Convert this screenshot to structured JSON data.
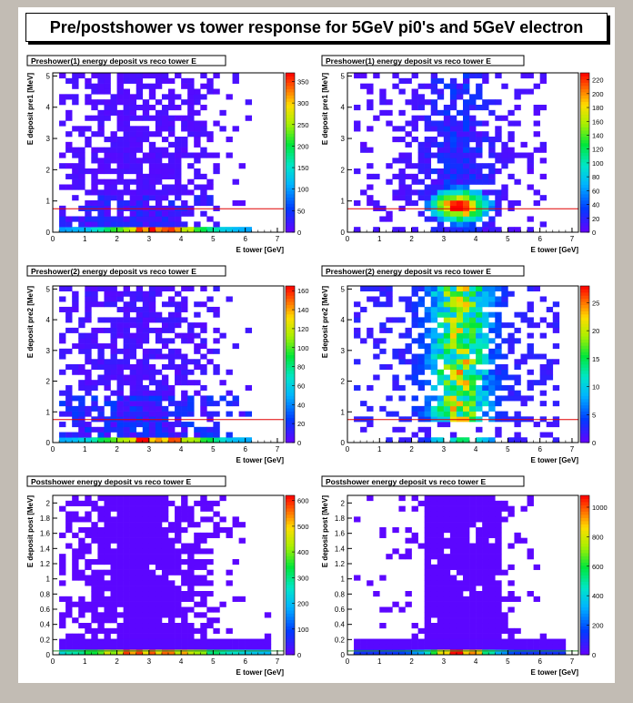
{
  "main_title": "Pre/postshower vs tower response for 5GeV pi0's and 5GeV electron",
  "chart_data": [
    {
      "type": "heatmap",
      "title": "Preshower(1) energy deposit vs reco tower E",
      "xlabel": "E tower [GeV]",
      "ylabel": "E deposit pre1 [MeV]",
      "xlim": [
        0,
        7.2
      ],
      "ylim": [
        0,
        5.1
      ],
      "xticks": [
        "0",
        "1",
        "2",
        "3",
        "4",
        "5",
        "6",
        "7"
      ],
      "yticks": [
        "0",
        "1",
        "2",
        "3",
        "4",
        "5"
      ],
      "zticks": [
        "0",
        "50",
        "100",
        "150",
        "200",
        "250",
        "300",
        "350"
      ],
      "zmax": 370,
      "cut_line_y": 0.75,
      "sample": "5GeV pi0",
      "description": "Broad diffuse distribution from x=0.2 to 5.5 GeV, strong band at y<0.15 peaking near x=3-4"
    },
    {
      "type": "heatmap",
      "title": "Preshower(1) energy deposit vs reco tower E",
      "xlabel": "E tower [GeV]",
      "ylabel": "E deposit pre1 [MeV]",
      "xlim": [
        0,
        7.2
      ],
      "ylim": [
        0,
        5.1
      ],
      "xticks": [
        "0",
        "1",
        "2",
        "3",
        "4",
        "5",
        "6",
        "7"
      ],
      "yticks": [
        "0",
        "1",
        "2",
        "3",
        "4",
        "5"
      ],
      "zticks": [
        "0",
        "20",
        "40",
        "60",
        "80",
        "100",
        "120",
        "140",
        "160",
        "180",
        "200",
        "220"
      ],
      "zmax": 230,
      "cut_line_y": 0.75,
      "sample": "5GeV electron",
      "description": "Concentrated around x=3.5 GeV, peak near y=0.8 MeV"
    },
    {
      "type": "heatmap",
      "title": "Preshower(2) energy deposit vs reco tower E",
      "xlabel": "E tower [GeV]",
      "ylabel": "E deposit pre2 [MeV]",
      "xlim": [
        0,
        7.2
      ],
      "ylim": [
        0,
        5.1
      ],
      "xticks": [
        "0",
        "1",
        "2",
        "3",
        "4",
        "5",
        "6",
        "7"
      ],
      "yticks": [
        "0",
        "1",
        "2",
        "3",
        "4",
        "5"
      ],
      "zticks": [
        "0",
        "20",
        "40",
        "60",
        "80",
        "100",
        "120",
        "140",
        "160"
      ],
      "zmax": 165,
      "cut_line_y": 0.75,
      "sample": "5GeV pi0",
      "description": "Broad distribution, strong low-y band peaking near x=3-4"
    },
    {
      "type": "heatmap",
      "title": "Preshower(2) energy deposit vs reco tower E",
      "xlabel": "E tower [GeV]",
      "ylabel": "E deposit pre2 [MeV]",
      "xlim": [
        0,
        7.2
      ],
      "ylim": [
        0,
        5.1
      ],
      "xticks": [
        "0",
        "1",
        "2",
        "3",
        "4",
        "5",
        "6",
        "7"
      ],
      "yticks": [
        "0",
        "1",
        "2",
        "3",
        "4",
        "5"
      ],
      "zticks": [
        "0",
        "5",
        "10",
        "15",
        "20",
        "25"
      ],
      "zmax": 28,
      "cut_line_y": 0.75,
      "sample": "5GeV electron",
      "description": "Vertical band around x=3.5 GeV spread over full y range"
    },
    {
      "type": "heatmap",
      "title": "Postshower   energy deposit vs reco tower E",
      "xlabel": "E tower [GeV]",
      "ylabel": "E deposit post [MeV]",
      "xlim": [
        0,
        7.2
      ],
      "ylim": [
        0,
        2.1
      ],
      "xticks": [
        "0",
        "1",
        "2",
        "3",
        "4",
        "5",
        "6",
        "7"
      ],
      "yticks": [
        "0",
        "0.2",
        "0.4",
        "0.6",
        "0.8",
        "1",
        "1.2",
        "1.4",
        "1.6",
        "1.8",
        "2"
      ],
      "zticks": [
        "0",
        "100",
        "200",
        "300",
        "400",
        "500",
        "600"
      ],
      "zmax": 620,
      "cut_line_y": 0.05,
      "sample": "5GeV pi0",
      "description": "Mostly low-density plateau, hot band at y<0.1 spanning x=0.2-5"
    },
    {
      "type": "heatmap",
      "title": "Postshower   energy deposit vs reco tower E",
      "xlabel": "E tower [GeV]",
      "ylabel": "E deposit post [MeV]",
      "xlim": [
        0,
        7.2
      ],
      "ylim": [
        0,
        2.1
      ],
      "xticks": [
        "0",
        "1",
        "2",
        "3",
        "4",
        "5",
        "6",
        "7"
      ],
      "yticks": [
        "0",
        "0.2",
        "0.4",
        "0.6",
        "0.8",
        "1",
        "1.2",
        "1.4",
        "1.6",
        "1.8",
        "2"
      ],
      "zticks": [
        "0",
        "200",
        "400",
        "600",
        "800",
        "1000"
      ],
      "zmax": 1080,
      "cut_line_y": 0.05,
      "sample": "5GeV electron",
      "description": "Column around x=2.3-4.8, hot band at y<0.1 peaking near x=3.5"
    }
  ]
}
